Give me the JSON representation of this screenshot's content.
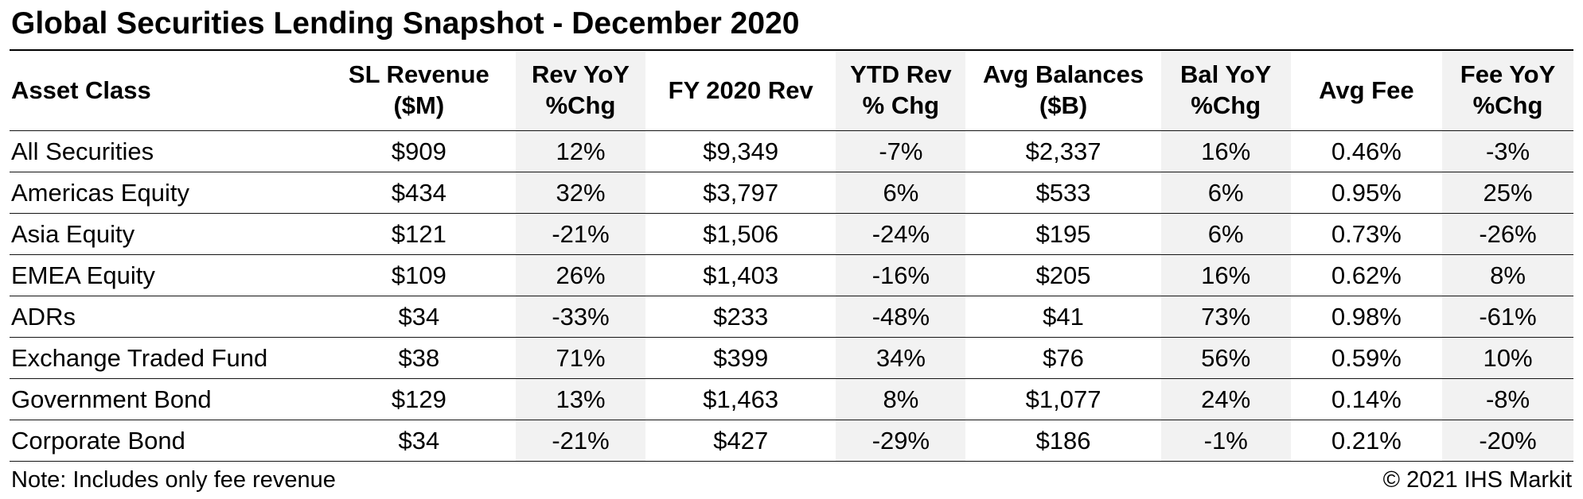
{
  "title": "Global Securities Lending Snapshot - December 2020",
  "colors": {
    "shaded_column_bg": "#f2f2f2",
    "text": "#000000",
    "background": "#ffffff"
  },
  "footer": {
    "note": "Note: Includes only fee revenue",
    "copyright": "© 2021 IHS Markit"
  },
  "chart_data": {
    "type": "table",
    "title": "Global Securities Lending Snapshot - December 2020",
    "columns": [
      {
        "id": "asset-class",
        "line1": "Asset Class",
        "line2": "",
        "align": "left",
        "shaded": false
      },
      {
        "id": "sl-revenue",
        "line1": "SL Revenue",
        "line2": "($M)",
        "align": "center",
        "shaded": false
      },
      {
        "id": "rev-yoy",
        "line1": "Rev YoY",
        "line2": "%Chg",
        "align": "center",
        "shaded": true
      },
      {
        "id": "fy-2020-rev",
        "line1": "FY 2020 Rev",
        "line2": "",
        "align": "center",
        "shaded": false
      },
      {
        "id": "ytd-rev",
        "line1": "YTD Rev",
        "line2": "% Chg",
        "align": "center",
        "shaded": true
      },
      {
        "id": "avg-balances",
        "line1": "Avg Balances",
        "line2": "($B)",
        "align": "center",
        "shaded": false
      },
      {
        "id": "bal-yoy",
        "line1": "Bal YoY",
        "line2": "%Chg",
        "align": "center",
        "shaded": true
      },
      {
        "id": "avg-fee",
        "line1": "Avg Fee",
        "line2": "",
        "align": "center",
        "shaded": false
      },
      {
        "id": "fee-yoy",
        "line1": "Fee YoY",
        "line2": "%Chg",
        "align": "center",
        "shaded": true
      }
    ],
    "rows": [
      [
        "All Securities",
        "$909",
        "12%",
        "$9,349",
        "-7%",
        "$2,337",
        "16%",
        "0.46%",
        "-3%"
      ],
      [
        "Americas Equity",
        "$434",
        "32%",
        "$3,797",
        "6%",
        "$533",
        "6%",
        "0.95%",
        "25%"
      ],
      [
        "Asia Equity",
        "$121",
        "-21%",
        "$1,506",
        "-24%",
        "$195",
        "6%",
        "0.73%",
        "-26%"
      ],
      [
        "EMEA Equity",
        "$109",
        "26%",
        "$1,403",
        "-16%",
        "$205",
        "16%",
        "0.62%",
        "8%"
      ],
      [
        "ADRs",
        "$34",
        "-33%",
        "$233",
        "-48%",
        "$41",
        "73%",
        "0.98%",
        "-61%"
      ],
      [
        "Exchange Traded Fund",
        "$38",
        "71%",
        "$399",
        "34%",
        "$76",
        "56%",
        "0.59%",
        "10%"
      ],
      [
        "Government Bond",
        "$129",
        "13%",
        "$1,463",
        "8%",
        "$1,077",
        "24%",
        "0.14%",
        "-8%"
      ],
      [
        "Corporate Bond",
        "$34",
        "-21%",
        "$427",
        "-29%",
        "$186",
        "-1%",
        "0.21%",
        "-20%"
      ]
    ]
  }
}
